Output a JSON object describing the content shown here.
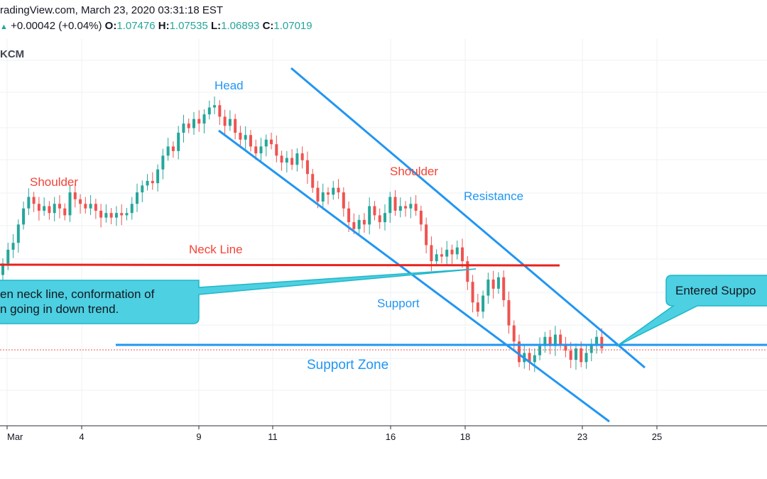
{
  "header": {
    "line1": "radingView.com, March 23, 2020 03:31:18 EST",
    "change": "+0.00042 (+0.04%)",
    "open_label": "O:",
    "open": "1.07476",
    "high_label": "H:",
    "high": "1.07535",
    "low_label": "L:",
    "low": "1.06893",
    "close_label": "C:",
    "close": "1.07019",
    "symbol": "KCM"
  },
  "colors": {
    "up": "#26a69a",
    "down": "#ef5350",
    "blue_line": "#2196f3",
    "neck_line": "#e8221d",
    "callout_fill": "#4dd0e1",
    "callout_border": "#1fb6c9",
    "label_blue": "#2196f3",
    "label_red": "#f44336"
  },
  "annotations": {
    "head": "Head",
    "shoulder_left": "Shoulder",
    "shoulder_right": "Shoulder",
    "resistance": "Resistance",
    "neck_line": "Neck Line",
    "support": "Support",
    "support_zone": "Support Zone",
    "callout_left_line1": "en neck line, conformation of",
    "callout_left_line2": "n going in down trend.",
    "callout_right": "Entered Suppo"
  },
  "chart_data": {
    "type": "candlestick",
    "title": "",
    "x_ticks": [
      "Mar",
      "4",
      "9",
      "11",
      "16",
      "18",
      "23",
      "25"
    ],
    "grid": true,
    "candles": [
      {
        "o": 1.09,
        "c": 1.095
      },
      {
        "o": 1.095,
        "c": 1.101
      },
      {
        "o": 1.101,
        "c": 1.104
      },
      {
        "o": 1.104,
        "c": 1.112
      },
      {
        "o": 1.112,
        "c": 1.119
      },
      {
        "o": 1.119,
        "c": 1.124
      },
      {
        "o": 1.124,
        "c": 1.121
      },
      {
        "o": 1.121,
        "c": 1.118
      },
      {
        "o": 1.118,
        "c": 1.12
      },
      {
        "o": 1.12,
        "c": 1.117
      },
      {
        "o": 1.117,
        "c": 1.121
      },
      {
        "o": 1.121,
        "c": 1.119
      },
      {
        "o": 1.119,
        "c": 1.116
      },
      {
        "o": 1.116,
        "c": 1.126
      },
      {
        "o": 1.126,
        "c": 1.123
      },
      {
        "o": 1.123,
        "c": 1.121
      },
      {
        "o": 1.121,
        "c": 1.119
      },
      {
        "o": 1.119,
        "c": 1.121
      },
      {
        "o": 1.121,
        "c": 1.118
      },
      {
        "o": 1.118,
        "c": 1.115
      },
      {
        "o": 1.115,
        "c": 1.117
      },
      {
        "o": 1.117,
        "c": 1.115
      },
      {
        "o": 1.115,
        "c": 1.117
      },
      {
        "o": 1.117,
        "c": 1.116
      },
      {
        "o": 1.116,
        "c": 1.117
      },
      {
        "o": 1.117,
        "c": 1.121
      },
      {
        "o": 1.121,
        "c": 1.126
      },
      {
        "o": 1.126,
        "c": 1.129
      },
      {
        "o": 1.129,
        "c": 1.131
      },
      {
        "o": 1.131,
        "c": 1.13
      },
      {
        "o": 1.13,
        "c": 1.136
      },
      {
        "o": 1.136,
        "c": 1.142
      },
      {
        "o": 1.142,
        "c": 1.146
      },
      {
        "o": 1.146,
        "c": 1.144
      },
      {
        "o": 1.144,
        "c": 1.152
      },
      {
        "o": 1.152,
        "c": 1.156
      },
      {
        "o": 1.156,
        "c": 1.154
      },
      {
        "o": 1.154,
        "c": 1.158
      },
      {
        "o": 1.158,
        "c": 1.156
      },
      {
        "o": 1.156,
        "c": 1.16
      },
      {
        "o": 1.16,
        "c": 1.163
      },
      {
        "o": 1.163,
        "c": 1.164
      },
      {
        "o": 1.164,
        "c": 1.159
      },
      {
        "o": 1.159,
        "c": 1.155
      },
      {
        "o": 1.155,
        "c": 1.158
      },
      {
        "o": 1.158,
        "c": 1.152
      },
      {
        "o": 1.152,
        "c": 1.149
      },
      {
        "o": 1.149,
        "c": 1.151
      },
      {
        "o": 1.151,
        "c": 1.146
      },
      {
        "o": 1.146,
        "c": 1.143
      },
      {
        "o": 1.143,
        "c": 1.146
      },
      {
        "o": 1.146,
        "c": 1.149
      },
      {
        "o": 1.149,
        "c": 1.147
      },
      {
        "o": 1.147,
        "c": 1.142
      },
      {
        "o": 1.142,
        "c": 1.139
      },
      {
        "o": 1.139,
        "c": 1.141
      },
      {
        "o": 1.141,
        "c": 1.138
      },
      {
        "o": 1.138,
        "c": 1.143
      },
      {
        "o": 1.143,
        "c": 1.14
      },
      {
        "o": 1.14,
        "c": 1.134
      },
      {
        "o": 1.134,
        "c": 1.128
      },
      {
        "o": 1.128,
        "c": 1.122
      },
      {
        "o": 1.122,
        "c": 1.126
      },
      {
        "o": 1.126,
        "c": 1.125
      },
      {
        "o": 1.125,
        "c": 1.128
      },
      {
        "o": 1.128,
        "c": 1.126
      },
      {
        "o": 1.126,
        "c": 1.119
      },
      {
        "o": 1.119,
        "c": 1.113
      },
      {
        "o": 1.113,
        "c": 1.11
      },
      {
        "o": 1.11,
        "c": 1.114
      },
      {
        "o": 1.114,
        "c": 1.112
      },
      {
        "o": 1.112,
        "c": 1.12
      },
      {
        "o": 1.12,
        "c": 1.116
      },
      {
        "o": 1.116,
        "c": 1.113
      },
      {
        "o": 1.113,
        "c": 1.117
      },
      {
        "o": 1.117,
        "c": 1.124
      },
      {
        "o": 1.124,
        "c": 1.118
      },
      {
        "o": 1.118,
        "c": 1.12
      },
      {
        "o": 1.12,
        "c": 1.119
      },
      {
        "o": 1.119,
        "c": 1.121
      },
      {
        "o": 1.121,
        "c": 1.118
      },
      {
        "o": 1.118,
        "c": 1.112
      },
      {
        "o": 1.112,
        "c": 1.103
      },
      {
        "o": 1.103,
        "c": 1.096
      },
      {
        "o": 1.096,
        "c": 1.099
      },
      {
        "o": 1.099,
        "c": 1.098
      },
      {
        "o": 1.098,
        "c": 1.101
      },
      {
        "o": 1.101,
        "c": 1.099
      },
      {
        "o": 1.099,
        "c": 1.102
      },
      {
        "o": 1.102,
        "c": 1.096
      },
      {
        "o": 1.096,
        "c": 1.087
      },
      {
        "o": 1.087,
        "c": 1.078
      },
      {
        "o": 1.078,
        "c": 1.074
      },
      {
        "o": 1.074,
        "c": 1.081
      },
      {
        "o": 1.081,
        "c": 1.088
      },
      {
        "o": 1.088,
        "c": 1.084
      },
      {
        "o": 1.084,
        "c": 1.089
      },
      {
        "o": 1.089,
        "c": 1.079
      },
      {
        "o": 1.079,
        "c": 1.068
      },
      {
        "o": 1.068,
        "c": 1.061
      },
      {
        "o": 1.061,
        "c": 1.052
      },
      {
        "o": 1.052,
        "c": 1.056
      },
      {
        "o": 1.056,
        "c": 1.052
      },
      {
        "o": 1.052,
        "c": 1.055
      },
      {
        "o": 1.055,
        "c": 1.059
      },
      {
        "o": 1.059,
        "c": 1.063
      },
      {
        "o": 1.063,
        "c": 1.059
      },
      {
        "o": 1.059,
        "c": 1.064
      },
      {
        "o": 1.064,
        "c": 1.06
      },
      {
        "o": 1.06,
        "c": 1.057
      },
      {
        "o": 1.057,
        "c": 1.053
      },
      {
        "o": 1.053,
        "c": 1.058
      },
      {
        "o": 1.058,
        "c": 1.052
      },
      {
        "o": 1.052,
        "c": 1.056
      },
      {
        "o": 1.056,
        "c": 1.06
      },
      {
        "o": 1.06,
        "c": 1.063
      },
      {
        "o": 1.063,
        "c": 1.058
      }
    ],
    "lines": [
      {
        "name": "Neck Line",
        "color": "#e8221d"
      },
      {
        "name": "Resistance",
        "color": "#2196f3"
      },
      {
        "name": "Support",
        "color": "#2196f3"
      },
      {
        "name": "Support Zone",
        "color": "#2196f3"
      }
    ]
  }
}
